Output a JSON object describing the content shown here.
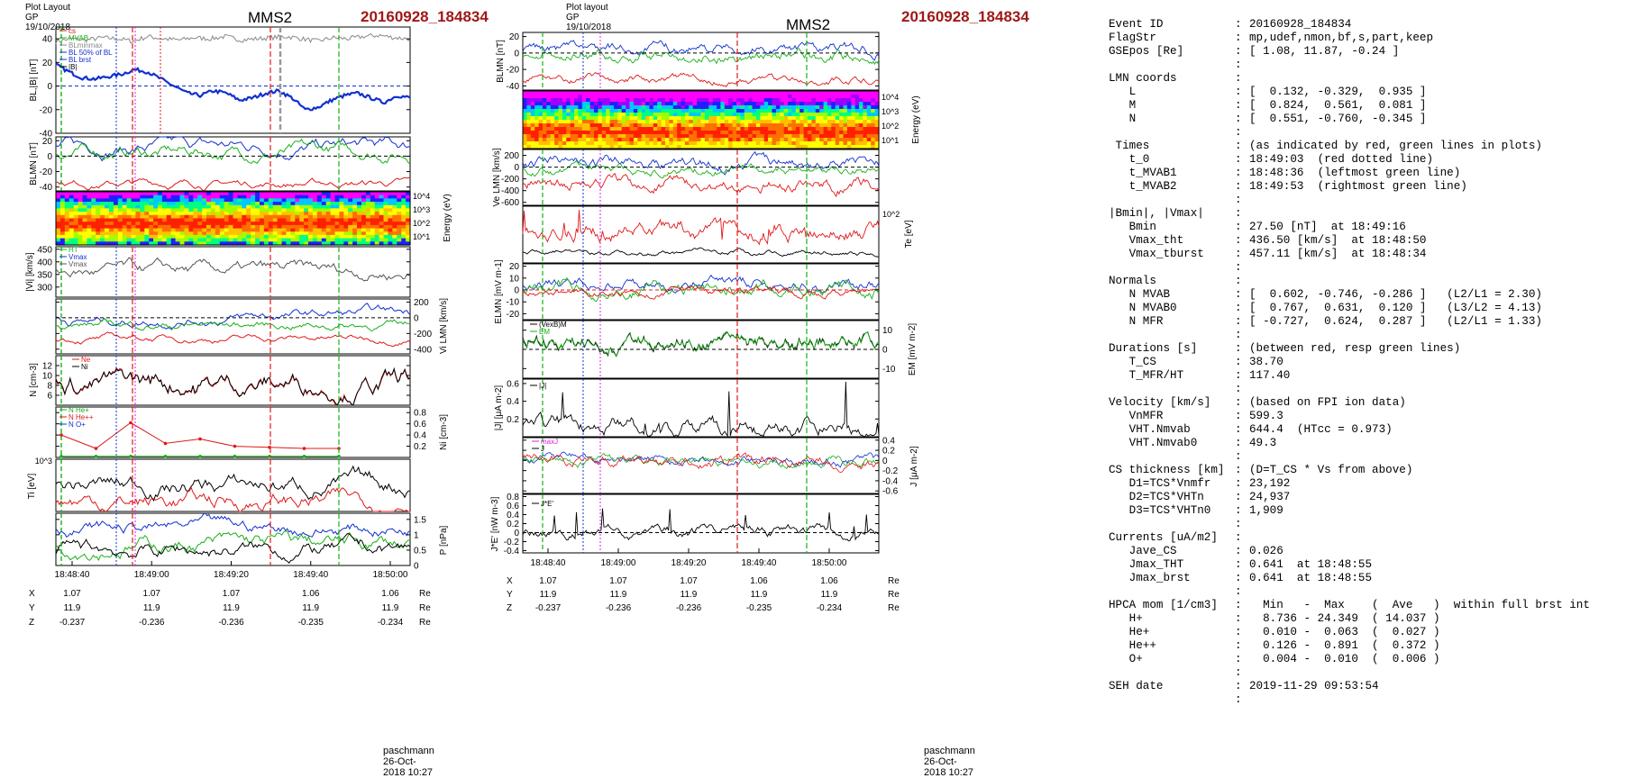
{
  "figure_left": {
    "header": "Plot Layout GP 19/10/2018",
    "probe": "MMS2",
    "event": "20160928_184834",
    "footer": "paschmann 26-Oct-2018 10:27",
    "time_ticks": [
      "18:48:40",
      "18:49:00",
      "18:49:20",
      "18:49:40",
      "18:50:00"
    ],
    "pos_rows": [
      {
        "label": "X",
        "values": [
          "1.07",
          "1.07",
          "1.07",
          "1.06",
          "1.06"
        ],
        "unit": "Re"
      },
      {
        "label": "Y",
        "values": [
          "11.9",
          "11.9",
          "11.9",
          "11.9",
          "11.9"
        ],
        "unit": "Re"
      },
      {
        "label": "Z",
        "values": [
          "-0.237",
          "-0.236",
          "-0.236",
          "-0.235",
          "-0.234"
        ],
        "unit": "Re"
      }
    ]
  },
  "figure_mid": {
    "header": "Plot layout GP 19/10/2018",
    "probe": "MMS2",
    "event": "20160928_184834",
    "footer": "paschmann 26-Oct-2018 10:27",
    "time_ticks": [
      "18:48:40",
      "18:49:00",
      "18:49:20",
      "18:49:40",
      "18:50:00"
    ],
    "pos_rows": [
      {
        "label": "X",
        "values": [
          "1.07",
          "1.07",
          "1.07",
          "1.06",
          "1.06"
        ],
        "unit": "Re"
      },
      {
        "label": "Y",
        "values": [
          "11.9",
          "11.9",
          "11.9",
          "11.9",
          "11.9"
        ],
        "unit": "Re"
      },
      {
        "label": "Z",
        "values": [
          "-0.237",
          "-0.236",
          "-0.236",
          "-0.235",
          "-0.234"
        ],
        "unit": "Re"
      }
    ]
  },
  "chart_data": [
    {
      "type": "line",
      "panel": "left-1",
      "ylabel": "BL,|B| [nT]",
      "ylim": [
        -40,
        50
      ],
      "yticks": [
        -40,
        -20,
        0,
        20,
        40
      ],
      "legend": [
        "cs",
        "MVAB",
        "BLminmax",
        "BL 50% of BL",
        "BL brst",
        "|B|"
      ],
      "series": [
        {
          "name": "|B|",
          "color": "#888888",
          "values": [
            38,
            40,
            39,
            41,
            40,
            38,
            42,
            40,
            39,
            41,
            40,
            42,
            39,
            40,
            41,
            42,
            40,
            38,
            41,
            40,
            42,
            43,
            41,
            40
          ]
        },
        {
          "name": "BL",
          "color": "#1030d0",
          "values": [
            18,
            12,
            7,
            6,
            8,
            10,
            14,
            12,
            6,
            0,
            -6,
            -8,
            -4,
            -6,
            -12,
            -10,
            -6,
            -4,
            -10,
            -20,
            -18,
            -12,
            -8,
            -6,
            -10,
            -14,
            -8,
            -10
          ]
        }
      ]
    },
    {
      "type": "line",
      "panel": "left-2",
      "ylabel": "BLMN [nT]",
      "ylim": [
        -45,
        25
      ],
      "yticks": [
        -40,
        -20,
        0,
        20
      ]
    },
    {
      "type": "heatmap",
      "panel": "left-3",
      "ylabel": "Energy (eV)",
      "yticks": [
        "10^4",
        "10^3",
        "10^2",
        "10^1"
      ]
    },
    {
      "type": "line",
      "panel": "left-4",
      "ylabel": "|Vi| [km/s]",
      "ylim": [
        260,
        460
      ],
      "yticks": [
        300,
        350,
        400,
        450
      ],
      "legend": [
        "HT",
        "Vmax",
        "Vmax"
      ]
    },
    {
      "type": "line",
      "panel": "left-5",
      "ylabel": "Vi LMN [km/s]",
      "ylim": [
        -460,
        240
      ],
      "yticks": [
        -400,
        -200,
        0,
        200
      ]
    },
    {
      "type": "line",
      "panel": "left-6",
      "ylabel": "N [cm-3]",
      "ylim": [
        4,
        14
      ],
      "yticks": [
        6,
        8,
        10,
        12
      ],
      "legend": [
        "Ne",
        "Ni"
      ]
    },
    {
      "type": "line",
      "panel": "left-7",
      "ylabel": "Ni [cm-3]",
      "ylim": [
        0,
        0.9
      ],
      "yticks": [
        0.2,
        0.4,
        0.6,
        0.8
      ],
      "legend": [
        "N He+",
        "N He++",
        "N O+"
      ],
      "series": [
        {
          "name": "N He++",
          "color": "#e01818",
          "values": [
            0.4,
            0.16,
            0.62,
            0.25,
            0.33,
            0.2,
            0.18,
            0.16,
            0.16
          ]
        },
        {
          "name": "N He+",
          "color": "#18b018",
          "values": [
            0.02,
            0.02,
            0.02,
            0.02,
            0.02,
            0.02,
            0.02,
            0.02,
            0.02
          ]
        }
      ]
    },
    {
      "type": "line",
      "panel": "left-8",
      "ylabel": "Ti [eV]",
      "yticks": [
        "10^3"
      ]
    },
    {
      "type": "line",
      "panel": "left-9",
      "ylabel": "P [nPa]",
      "ylim": [
        0,
        1.7
      ],
      "yticks": [
        0.0,
        0.5,
        1.0,
        1.5
      ]
    },
    {
      "type": "line",
      "panel": "mid-1",
      "ylabel": "BLMN [nT]",
      "ylim": [
        -45,
        25
      ],
      "yticks": [
        -40,
        -20,
        0,
        20
      ]
    },
    {
      "type": "heatmap",
      "panel": "mid-2",
      "ylabel": "Energy (eV)",
      "yticks": [
        "10^4",
        "10^3",
        "10^2",
        "10^1"
      ]
    },
    {
      "type": "line",
      "panel": "mid-3",
      "ylabel": "Ve LMN [km/s]",
      "ylim": [
        -650,
        300
      ],
      "yticks": [
        -600,
        -400,
        -200,
        0,
        200
      ]
    },
    {
      "type": "line",
      "panel": "mid-4",
      "ylabel": "Te [eV]",
      "yticks": [
        "10^2"
      ]
    },
    {
      "type": "line",
      "panel": "mid-5",
      "ylabel": "ELMN [mV m-1]",
      "ylim": [
        -25,
        22
      ],
      "yticks": [
        -20,
        -10,
        0,
        10,
        20
      ]
    },
    {
      "type": "line",
      "panel": "mid-6",
      "ylabel": "EM [mV m-2]",
      "ylim": [
        -15,
        15
      ],
      "yticks": [
        -10,
        0,
        10
      ],
      "legend": [
        "(VexB)M",
        "EM"
      ]
    },
    {
      "type": "line",
      "panel": "mid-7",
      "ylabel": "|J| [μA m-2]",
      "ylim": [
        0,
        0.65
      ],
      "yticks": [
        0.2,
        0.4,
        0.6
      ],
      "legend": [
        "|J|"
      ]
    },
    {
      "type": "line",
      "panel": "mid-8",
      "ylabel": "J [μA m-2]",
      "ylim": [
        -0.65,
        0.45
      ],
      "yticks": [
        -0.6,
        -0.4,
        -0.2,
        0.0,
        0.2,
        0.4
      ],
      "legend": [
        "maxJ",
        "J"
      ]
    },
    {
      "type": "line",
      "panel": "mid-9",
      "ylabel": "J*E' [nW m-3]",
      "ylim": [
        -0.45,
        0.85
      ],
      "yticks": [
        -0.4,
        -0.2,
        0.0,
        0.2,
        0.4,
        0.6,
        0.8
      ],
      "legend": [
        "J*E'"
      ]
    }
  ],
  "info": {
    "rows": [
      {
        "k": "Event ID",
        "v": "20160928_184834"
      },
      {
        "k": "FlagStr",
        "v": "mp,udef,nmon,bf,s,part,keep"
      },
      {
        "k": "GSEpos [Re]",
        "v": "[ 1.08, 11.87, -0.24 ]"
      },
      {
        "k": "",
        "v": ""
      },
      {
        "k": "LMN coords",
        "v": ""
      },
      {
        "k": "   L",
        "v": "[  0.132, -0.329,  0.935 ]"
      },
      {
        "k": "   M",
        "v": "[  0.824,  0.561,  0.081 ]"
      },
      {
        "k": "   N",
        "v": "[  0.551, -0.760, -0.345 ]"
      },
      {
        "k": "",
        "v": ""
      },
      {
        "k": " Times",
        "v": "(as indicated by red, green lines in plots)"
      },
      {
        "k": "   t_0",
        "v": "18:49:03  (red dotted line)"
      },
      {
        "k": "   t_MVAB1",
        "v": "18:48:36  (leftmost green line)"
      },
      {
        "k": "   t_MVAB2",
        "v": "18:49:53  (rightmost green line)"
      },
      {
        "k": "",
        "v": ""
      },
      {
        "k": "|Bmin|, |Vmax|",
        "v": ""
      },
      {
        "k": "   Bmin",
        "v": "27.50 [nT]  at 18:49:16"
      },
      {
        "k": "   Vmax_tht",
        "v": "436.50 [km/s]  at 18:48:50"
      },
      {
        "k": "   Vmax_tburst",
        "v": "457.11 [km/s]  at 18:48:34"
      },
      {
        "k": "",
        "v": ""
      },
      {
        "k": "Normals",
        "v": ""
      },
      {
        "k": "   N MVAB",
        "v": "[  0.602, -0.746, -0.286 ]   (L2/L1 = 2.30)"
      },
      {
        "k": "   N MVAB0",
        "v": "[  0.767,  0.631,  0.120 ]   (L3/L2 = 4.13)"
      },
      {
        "k": "   N MFR",
        "v": "[ -0.727,  0.624,  0.287 ]   (L2/L1 = 1.33)"
      },
      {
        "k": "",
        "v": ""
      },
      {
        "k": "Durations [s]",
        "v": "(between red, resp green lines)"
      },
      {
        "k": "   T_CS",
        "v": "38.70"
      },
      {
        "k": "   T_MFR/HT",
        "v": "117.40"
      },
      {
        "k": "",
        "v": ""
      },
      {
        "k": "Velocity [km/s]",
        "v": "(based on FPI ion data)"
      },
      {
        "k": "   VnMFR",
        "v": "599.3"
      },
      {
        "k": "   VHT.Nmvab",
        "v": "644.4  (HTcc = 0.973)"
      },
      {
        "k": "   VHT.Nmvab0",
        "v": "49.3"
      },
      {
        "k": "",
        "v": ""
      },
      {
        "k": "CS thickness [km]",
        "v": "(D=T_CS * Vs from above)"
      },
      {
        "k": "   D1=TCS*Vnmfr",
        "v": "23,192"
      },
      {
        "k": "   D2=TCS*VHTn",
        "v": "24,937"
      },
      {
        "k": "   D3=TCS*VHTn0",
        "v": "1,909"
      },
      {
        "k": "",
        "v": ""
      },
      {
        "k": "Currents [uA/m2]",
        "v": ""
      },
      {
        "k": "   Jave_CS",
        "v": "0.026"
      },
      {
        "k": "   Jmax_THT",
        "v": "0.641  at 18:48:55"
      },
      {
        "k": "   Jmax_brst",
        "v": "0.641  at 18:48:55"
      },
      {
        "k": "",
        "v": ""
      },
      {
        "k": "HPCA mom [1/cm3]",
        "v": "  Min   -  Max    (  Ave   )  within full brst int"
      },
      {
        "k": "   H+",
        "v": "  8.736 - 24.349  ( 14.037 )"
      },
      {
        "k": "   He+",
        "v": "  0.010 -  0.063  (  0.027 )"
      },
      {
        "k": "   He++",
        "v": "  0.126 -  0.891  (  0.372 )"
      },
      {
        "k": "   O+",
        "v": "  0.004 -  0.010  (  0.006 )"
      },
      {
        "k": "",
        "v": ""
      },
      {
        "k": "SEH date",
        "v": "2019-11-29 09:53:54"
      },
      {
        "k": "",
        "v": ""
      }
    ]
  },
  "colors": {
    "event": "#a01818",
    "red": "#e01818",
    "green": "#18b018",
    "blue": "#1030d0",
    "black": "#000000",
    "magenta": "#e020e0"
  }
}
